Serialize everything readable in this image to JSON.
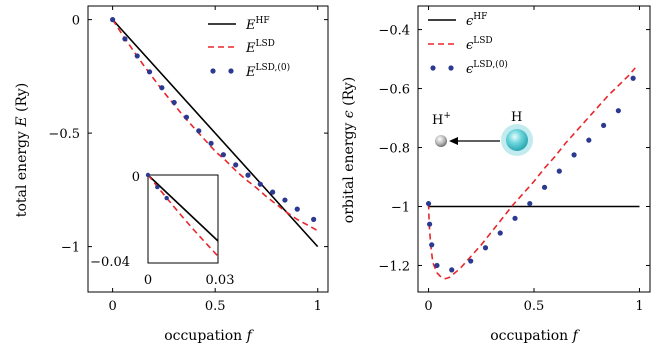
{
  "colors": {
    "hf": "#000000",
    "lsd": "#e8262b",
    "lsd0": "#2b3990",
    "h_atom": "#4fc7d0",
    "hplus": "#b0b0b0"
  },
  "chart_data": [
    {
      "type": "line",
      "panel": "left",
      "xlabel": "occupation f",
      "ylabel": "total energy E (Ry)",
      "xlim": [
        -0.12,
        1.05
      ],
      "ylim": [
        -1.2,
        0.06
      ],
      "xticks": [
        "0",
        "0.5",
        "1"
      ],
      "yticks": [
        "0",
        "−0.5",
        "−1"
      ],
      "legend_position": "top-right",
      "series": [
        {
          "name": "E^HF",
          "label_main": "E",
          "label_sup": "HF",
          "style": "solid",
          "x": [
            0,
            1
          ],
          "y": [
            0,
            -1.0
          ]
        },
        {
          "name": "E^LSD",
          "label_main": "E",
          "label_sup": "LSD",
          "style": "dashed",
          "x": [
            0,
            0.05,
            0.1,
            0.15,
            0.2,
            0.25,
            0.3,
            0.35,
            0.4,
            0.45,
            0.5,
            0.55,
            0.6,
            0.65,
            0.7,
            0.75,
            0.8,
            0.85,
            0.9,
            0.95,
            1.0
          ],
          "y": [
            0,
            -0.07,
            -0.135,
            -0.2,
            -0.26,
            -0.32,
            -0.375,
            -0.43,
            -0.48,
            -0.53,
            -0.58,
            -0.62,
            -0.665,
            -0.705,
            -0.74,
            -0.78,
            -0.815,
            -0.85,
            -0.88,
            -0.905,
            -0.93
          ]
        },
        {
          "name": "E^LSD,(0)",
          "label_main": "E",
          "label_sup": "LSD,(0)",
          "style": "dots",
          "x": [
            0,
            0.06,
            0.12,
            0.18,
            0.24,
            0.3,
            0.36,
            0.42,
            0.48,
            0.54,
            0.6,
            0.66,
            0.72,
            0.78,
            0.84,
            0.9,
            0.98
          ],
          "y": [
            0,
            -0.085,
            -0.16,
            -0.23,
            -0.3,
            -0.365,
            -0.43,
            -0.49,
            -0.545,
            -0.595,
            -0.64,
            -0.685,
            -0.725,
            -0.76,
            -0.795,
            -0.835,
            -0.88
          ]
        }
      ],
      "inset": {
        "xlim": [
          0,
          0.03
        ],
        "ylim": [
          -0.04,
          0
        ],
        "xticks": [
          "0",
          "0.03"
        ],
        "yticks": [
          "0",
          "−0.04"
        ],
        "series": [
          {
            "name": "E^HF",
            "style": "solid",
            "x": [
              0,
              0.03
            ],
            "y": [
              0,
              -0.03
            ]
          },
          {
            "name": "E^LSD",
            "style": "dashed",
            "x": [
              0,
              0.005,
              0.01,
              0.015,
              0.02,
              0.025,
              0.03
            ],
            "y": [
              0,
              -0.0066,
              -0.013,
              -0.0193,
              -0.0254,
              -0.0312,
              -0.0369
            ]
          },
          {
            "name": "E^LSD,(0)",
            "style": "dots",
            "x": [
              0,
              0.004,
              0.008
            ],
            "y": [
              0,
              -0.0055,
              -0.0105
            ]
          }
        ]
      }
    },
    {
      "type": "line",
      "panel": "right",
      "xlabel": "occupation f",
      "ylabel": "orbital energy ϵ (Ry)",
      "xlim": [
        -0.05,
        1.05
      ],
      "ylim": [
        -1.29,
        -0.32
      ],
      "xticks": [
        "0",
        "0.5",
        "1"
      ],
      "yticks": [
        "−0.4",
        "−0.6",
        "−0.8",
        "−1",
        "−1.2"
      ],
      "legend_position": "top-left",
      "series": [
        {
          "name": "ϵ^HF",
          "label_main": "ϵ",
          "label_sup": "HF",
          "style": "solid",
          "x": [
            0,
            1
          ],
          "y": [
            -1.0,
            -1.0
          ]
        },
        {
          "name": "ϵ^LSD",
          "label_main": "ϵ",
          "label_sup": "LSD",
          "style": "dashed",
          "x": [
            0,
            0.003,
            0.01,
            0.02,
            0.04,
            0.06,
            0.08,
            0.1,
            0.15,
            0.2,
            0.25,
            0.3,
            0.35,
            0.4,
            0.45,
            0.5,
            0.55,
            0.6,
            0.65,
            0.7,
            0.75,
            0.8,
            0.85,
            0.9,
            0.95,
            0.98
          ],
          "y": [
            -0.99,
            -1.06,
            -1.13,
            -1.19,
            -1.225,
            -1.24,
            -1.245,
            -1.24,
            -1.21,
            -1.17,
            -1.13,
            -1.085,
            -1.04,
            -0.995,
            -0.955,
            -0.915,
            -0.87,
            -0.83,
            -0.785,
            -0.745,
            -0.705,
            -0.665,
            -0.625,
            -0.59,
            -0.555,
            -0.53
          ]
        },
        {
          "name": "ϵ^LSD,(0)",
          "label_main": "ϵ",
          "label_sup": "LSD,(0)",
          "style": "dots",
          "x": [
            0,
            0.005,
            0.015,
            0.04,
            0.11,
            0.2,
            0.27,
            0.34,
            0.41,
            0.48,
            0.55,
            0.62,
            0.69,
            0.76,
            0.83,
            0.9,
            0.97
          ],
          "y": [
            -0.99,
            -1.06,
            -1.13,
            -1.2,
            -1.215,
            -1.185,
            -1.14,
            -1.09,
            -1.04,
            -0.99,
            -0.935,
            -0.88,
            -0.825,
            -0.775,
            -0.725,
            -0.675,
            -0.565
          ]
        }
      ],
      "annotation": {
        "left_label_main": "H",
        "left_label_sup": "+",
        "right_label": "H"
      }
    }
  ]
}
